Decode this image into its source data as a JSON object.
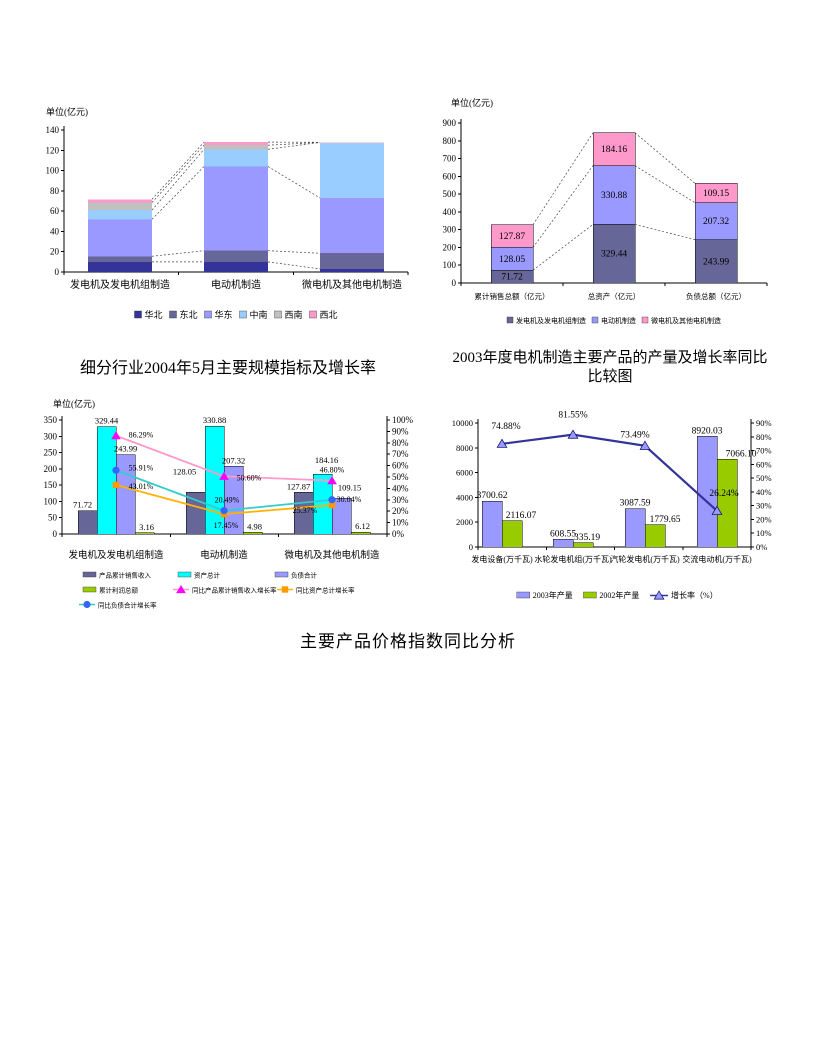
{
  "page": {
    "bottom_heading": "主要产品价格指数同比分析"
  },
  "chart_data": [
    {
      "id": "sales-by-region",
      "type": "bar",
      "stacked": true,
      "unit_label": "单位(亿元)",
      "categories": [
        "发电机及发电机组制造",
        "电动机制造",
        "微电机及其他电机制造"
      ],
      "ylim": [
        0,
        140
      ],
      "yticks": [
        "0",
        "20",
        "40",
        "60",
        "80",
        "100",
        "120",
        "140"
      ],
      "legend_position": "bottom",
      "series": [
        {
          "name": "华北",
          "color": "#333399",
          "values": [
            10,
            10,
            3
          ]
        },
        {
          "name": "东北",
          "color": "#666699",
          "values": [
            5.5,
            11,
            15.5
          ]
        },
        {
          "name": "华东",
          "color": "#9999FF",
          "values": [
            36.5,
            83,
            54.5
          ]
        },
        {
          "name": "中南",
          "color": "#99CCFF",
          "values": [
            9,
            17,
            54.7
          ]
        },
        {
          "name": "西南",
          "color": "#C0C0C0",
          "values": [
            7.5,
            4,
            0.1
          ]
        },
        {
          "name": "西北",
          "color": "#FF99CC",
          "values": [
            3.22,
            3.05,
            0.07
          ]
        }
      ]
    },
    {
      "id": "financial-totals",
      "type": "bar",
      "stacked": true,
      "unit_label": "单位(亿元)",
      "categories": [
        "累计销售总额（亿元）",
        "总资产（亿元）",
        "负债总额（亿元）"
      ],
      "ylim": [
        0,
        900
      ],
      "yticks": [
        "0",
        "100",
        "200",
        "300",
        "400",
        "500",
        "600",
        "700",
        "800",
        "900"
      ],
      "legend_position": "bottom",
      "series": [
        {
          "name": "发电机及发电机组制造",
          "color": "#666699",
          "values": [
            71.72,
            329.44,
            243.99
          ],
          "labels": [
            "71.72",
            "329.44",
            "243.99"
          ]
        },
        {
          "name": "电动机制造",
          "color": "#9999FF",
          "values": [
            128.05,
            330.88,
            207.32
          ],
          "labels": [
            "128.05",
            "330.88",
            "207.32"
          ]
        },
        {
          "name": "微电机及其他电机制造",
          "color": "#FF99CC",
          "values": [
            127.87,
            184.16,
            109.15
          ],
          "labels": [
            "127.87",
            "184.16",
            "109.15"
          ]
        }
      ]
    },
    {
      "id": "industry-scale-indicators",
      "type": "bar+line",
      "title": "细分行业2004年5月主要规模指标及增长率",
      "unit_label": "单位(亿元)",
      "categories": [
        "发电机及发电机组制造",
        "电动机制造",
        "微电机及其他电机制造"
      ],
      "left_ylim": [
        0,
        350
      ],
      "left_yticks": [
        "0",
        "50",
        "100",
        "150",
        "200",
        "250",
        "300",
        "350"
      ],
      "right_ylim": [
        0,
        100
      ],
      "right_yticks": [
        "0%",
        "10%",
        "20%",
        "30%",
        "40%",
        "50%",
        "60%",
        "70%",
        "80%",
        "90%",
        "100%"
      ],
      "bar_series": [
        {
          "name": "产品累计销售收入",
          "color": "#666699",
          "values": [
            71.72,
            128.05,
            127.87
          ],
          "labels": [
            "71.72",
            "128.05",
            "127.87"
          ]
        },
        {
          "name": "资产总计",
          "color": "#00FFFF",
          "values": [
            329.44,
            330.88,
            184.16
          ],
          "labels": [
            "329.44",
            "330.88",
            "184.16"
          ]
        },
        {
          "name": "负债合计",
          "color": "#9999FF",
          "values": [
            243.99,
            207.32,
            109.15
          ],
          "labels": [
            "243.99",
            "207.32",
            "109.15"
          ]
        },
        {
          "name": "累计利润总额",
          "color": "#99CC00",
          "values": [
            3.16,
            4.98,
            6.12
          ],
          "labels": [
            "3.16",
            "4.98",
            "6.12"
          ]
        }
      ],
      "line_series": [
        {
          "name": "同比产品累计销售收入增长率",
          "color": "#FF99CC",
          "marker": "triangle",
          "marker_color": "#FF00FF",
          "values": [
            86.29,
            50.6,
            46.8
          ],
          "labels": [
            "86.29%",
            "50.60%",
            "46.80%"
          ]
        },
        {
          "name": "同比资产总计增长率",
          "color": "#FFB300",
          "marker": "square",
          "marker_color": "#FF9900",
          "values": [
            43.01,
            17.45,
            25.37
          ],
          "labels": [
            "43.01%",
            "17.45%",
            "25.37%"
          ]
        },
        {
          "name": "同比负债合计增长率",
          "color": "#33CCCC",
          "marker": "circle",
          "marker_color": "#3366FF",
          "values": [
            55.91,
            20.49,
            30.04
          ],
          "labels": [
            "55.91%",
            "20.49%",
            "30.04%"
          ]
        }
      ]
    },
    {
      "id": "product-output-2003",
      "type": "bar+line",
      "title_lines": [
        "2003年度电机制造主要产品的产量及增长率同比",
        "比较图"
      ],
      "categories": [
        "发电设备(万千瓦)",
        "水轮发电机组(万千瓦)",
        "汽轮发电机(万千瓦)",
        "交流电动机(万千瓦)"
      ],
      "left_ylim": [
        0,
        10000
      ],
      "left_yticks": [
        "0",
        "2000",
        "4000",
        "6000",
        "8000",
        "10000"
      ],
      "right_ylim": [
        0,
        90
      ],
      "right_yticks": [
        "0%",
        "10%",
        "20%",
        "30%",
        "40%",
        "50%",
        "60%",
        "70%",
        "80%",
        "90%"
      ],
      "bar_series": [
        {
          "name": "2003年产量",
          "color": "#9999FF",
          "values": [
            3700.62,
            608.55,
            3087.59,
            8920.03
          ],
          "labels": [
            "3700.62",
            "608.55",
            "3087.59",
            "8920.03"
          ]
        },
        {
          "name": "2002年产量",
          "color": "#99CC00",
          "values": [
            2116.07,
            335.19,
            1779.65,
            7066.1
          ],
          "labels": [
            "2116.07",
            "335.19",
            "1779.65",
            "7066.10"
          ]
        }
      ],
      "line_series": [
        {
          "name": "增长率（%）",
          "color": "#333399",
          "marker": "triangle",
          "marker_color": "#9999FF",
          "marker_stroke": "#000066",
          "values": [
            74.88,
            81.55,
            73.49,
            26.24
          ],
          "labels": [
            "74.88%",
            "81.55%",
            "73.49%",
            "26.24%"
          ]
        }
      ]
    }
  ]
}
